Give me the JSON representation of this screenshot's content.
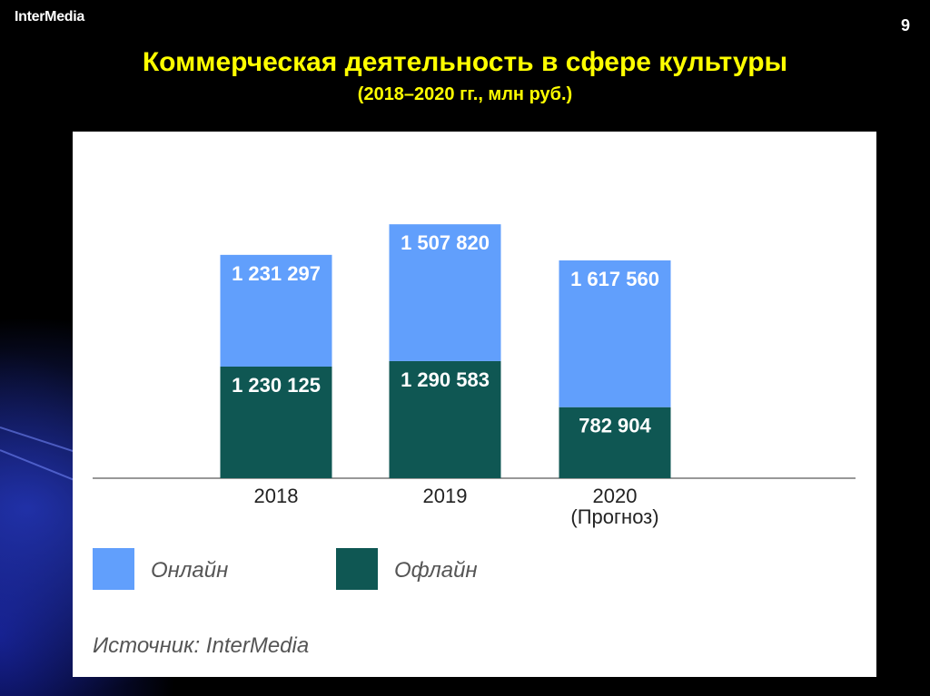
{
  "brand": "InterMedia",
  "page_number": "9",
  "title": "Коммерческая деятельность в сфере культуры",
  "subtitle": "(2018–2020 гг., млн руб.)",
  "colors": {
    "online": "#619ffc",
    "offline": "#0f5753",
    "title": "#ffff00",
    "background": "#000000"
  },
  "chart_data": {
    "type": "bar",
    "stacked": true,
    "categories": [
      "2018",
      "2019",
      "2020"
    ],
    "category_notes": [
      "",
      "",
      "(Прогноз)"
    ],
    "series": [
      {
        "name": "Офлайн",
        "values": [
          1230125,
          1290583,
          782904
        ],
        "labels": [
          "1 230 125",
          "1 290 583",
          "782 904"
        ],
        "color": "#0f5753"
      },
      {
        "name": "Онлайн",
        "values": [
          1231297,
          1507820,
          1617560
        ],
        "labels": [
          "1 231 297",
          "1 507 820",
          "1 617 560"
        ],
        "color": "#619ffc"
      }
    ],
    "legend_position": "bottom-left"
  },
  "source": "Источник: InterMedia"
}
